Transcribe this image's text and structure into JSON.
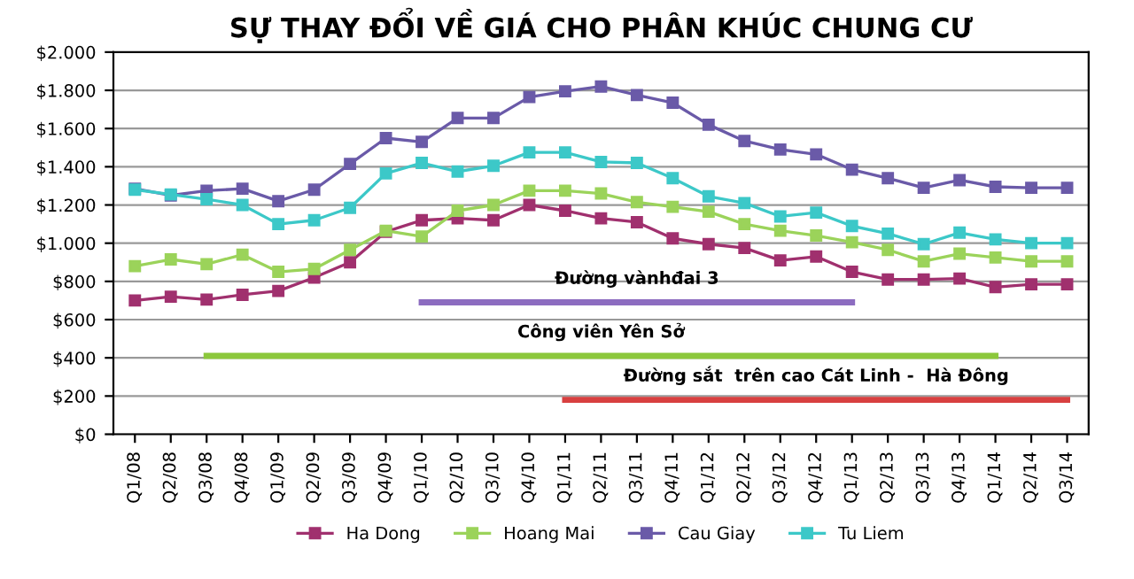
{
  "chart_data": {
    "type": "line",
    "title": "SỰ THAY ĐỔI VỀ GIÁ CHO PHÂN KHÚC CHUNG CƯ",
    "categories": [
      "Q1/08",
      "Q2/08",
      "Q3/08",
      "Q4/08",
      "Q1/09",
      "Q2/09",
      "Q3/09",
      "Q4/09",
      "Q1/10",
      "Q2/10",
      "Q3/10",
      "Q4/10",
      "Q1/11",
      "Q2/11",
      "Q3/11",
      "Q4/11",
      "Q1/12",
      "Q2/12",
      "Q3/12",
      "Q4/12",
      "Q1/13",
      "Q2/13",
      "Q3/13",
      "Q4/13",
      "Q1/14",
      "Q2/14",
      "Q3/14"
    ],
    "series": [
      {
        "name": "Ha Dong",
        "color": "#a0306e",
        "values": [
          700,
          720,
          705,
          730,
          750,
          820,
          900,
          1060,
          1120,
          1130,
          1120,
          1200,
          1170,
          1130,
          1110,
          1025,
          995,
          975,
          910,
          930,
          850,
          810,
          810,
          815,
          770,
          785,
          785
        ]
      },
      {
        "name": "Hoang Mai",
        "color": "#9bd35a",
        "values": [
          880,
          915,
          890,
          940,
          850,
          865,
          965,
          1065,
          1035,
          1170,
          1200,
          1275,
          1275,
          1260,
          1215,
          1190,
          1165,
          1100,
          1065,
          1040,
          1005,
          965,
          905,
          945,
          925,
          905,
          905
        ]
      },
      {
        "name": "Cau Giay",
        "color": "#6a5aa8",
        "values": [
          1285,
          1250,
          1275,
          1285,
          1220,
          1280,
          1415,
          1550,
          1530,
          1655,
          1655,
          1765,
          1795,
          1820,
          1775,
          1735,
          1620,
          1535,
          1490,
          1465,
          1385,
          1340,
          1290,
          1330,
          1295,
          1290,
          1290
        ]
      },
      {
        "name": "Tu Liem",
        "color": "#3cc8c8",
        "values": [
          1280,
          1255,
          1230,
          1200,
          1100,
          1120,
          1185,
          1365,
          1420,
          1375,
          1405,
          1475,
          1475,
          1425,
          1420,
          1340,
          1245,
          1210,
          1140,
          1160,
          1090,
          1050,
          995,
          1055,
          1020,
          1000,
          1000
        ]
      },
      {
        "color": "#8c6cc0",
        "marker": "none",
        "values": [
          null,
          null,
          null,
          null,
          null,
          null,
          null,
          null,
          690,
          690,
          690,
          690,
          690,
          690,
          690,
          690,
          690,
          690,
          690,
          690,
          690,
          null,
          null,
          null,
          null,
          null,
          null
        ]
      },
      {
        "color": "#8cc83c",
        "marker": "none",
        "values": [
          null,
          null,
          410,
          410,
          410,
          410,
          410,
          410,
          410,
          410,
          410,
          410,
          410,
          410,
          410,
          410,
          410,
          410,
          410,
          410,
          410,
          410,
          410,
          410,
          410,
          null,
          null
        ]
      },
      {
        "color": "#d84040",
        "marker": "none",
        "values": [
          null,
          null,
          null,
          null,
          null,
          null,
          null,
          null,
          null,
          null,
          null,
          null,
          180,
          180,
          180,
          180,
          180,
          180,
          180,
          180,
          180,
          180,
          180,
          180,
          180,
          180,
          180
        ]
      }
    ],
    "annotations": [
      "Đường vànhđai 3",
      "Công viên Yên Sở",
      "Đường sắt  trên cao Cát Linh -  Hà Đông"
    ],
    "ylim": [
      0,
      2000
    ],
    "yticks": [
      {
        "value": 0,
        "label": "$0"
      },
      {
        "value": 200,
        "label": "$200"
      },
      {
        "value": 400,
        "label": "$400"
      },
      {
        "value": 600,
        "label": "$600"
      },
      {
        "value": 800,
        "label": "$800"
      },
      {
        "value": 1000,
        "label": "$1.000"
      },
      {
        "value": 1200,
        "label": "$1.200"
      },
      {
        "value": 1400,
        "label": "$1.400"
      },
      {
        "value": 1600,
        "label": "$1.600"
      },
      {
        "value": 1800,
        "label": "$1.800"
      },
      {
        "value": 2000,
        "label": "$2.000"
      }
    ],
    "grid": "y",
    "legend": "bottom",
    "marker": "square",
    "line_style": "solid"
  }
}
